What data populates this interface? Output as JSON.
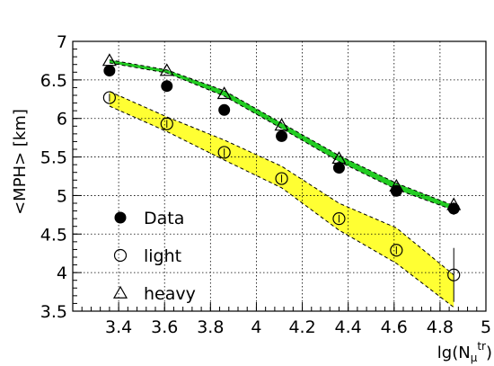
{
  "chart_data": {
    "type": "scatter",
    "title": "",
    "xlabel": {
      "main": "lg(N",
      "sub": "μ",
      "sup": "tr",
      "close": ")"
    },
    "ylabel": "<MPH> [km]",
    "xlim": [
      3.2,
      5.0
    ],
    "ylim": [
      3.5,
      7.0
    ],
    "xticks": [
      3.4,
      3.6,
      3.8,
      4.0,
      4.2,
      4.4,
      4.6,
      4.8,
      5.0
    ],
    "xtick_labels": [
      "3.4",
      "3.6",
      "3.8",
      "4",
      "4.2",
      "4.4",
      "4.6",
      "4.8",
      "5"
    ],
    "yticks": [
      3.5,
      4.0,
      4.5,
      5.0,
      5.5,
      6.0,
      6.5,
      7.0
    ],
    "ytick_labels": [
      "3.5",
      "4",
      "4.5",
      "5",
      "5.5",
      "6",
      "6.5",
      "7"
    ],
    "grid": true,
    "legend_position": "bottom-left",
    "series": [
      {
        "name": "Data",
        "marker": "filled-circle",
        "x": [
          3.36,
          3.61,
          3.86,
          4.11,
          4.36,
          4.61,
          4.86
        ],
        "y": [
          6.62,
          6.42,
          6.11,
          5.77,
          5.36,
          5.06,
          4.83
        ],
        "err": [
          0.05,
          0.05,
          0.05,
          0.05,
          0.05,
          0.05,
          0.08
        ]
      },
      {
        "name": "light",
        "marker": "open-circle",
        "x": [
          3.36,
          3.61,
          3.86,
          4.11,
          4.36,
          4.61,
          4.86
        ],
        "y": [
          6.27,
          5.93,
          5.56,
          5.22,
          4.7,
          4.29,
          3.97
        ],
        "err": [
          0.05,
          0.05,
          0.05,
          0.05,
          0.05,
          0.05,
          0.35
        ]
      },
      {
        "name": "heavy",
        "marker": "open-triangle",
        "x": [
          3.36,
          3.61,
          3.86,
          4.11,
          4.36,
          4.61,
          4.86
        ],
        "y": [
          6.75,
          6.62,
          6.32,
          5.91,
          5.48,
          5.12,
          4.88
        ]
      }
    ],
    "bands": [
      {
        "color": "#ffff33",
        "x": [
          3.36,
          3.61,
          3.86,
          4.11,
          4.36,
          4.61,
          4.86
        ],
        "upper": [
          6.35,
          6.02,
          5.72,
          5.38,
          4.9,
          4.58,
          3.97
        ],
        "lower": [
          6.16,
          5.83,
          5.46,
          5.1,
          4.55,
          4.12,
          3.55
        ]
      },
      {
        "color": "#22cc22",
        "x": [
          3.36,
          3.61,
          3.86,
          4.11,
          4.36,
          4.61,
          4.86
        ],
        "upper": [
          6.76,
          6.63,
          6.36,
          5.94,
          5.52,
          5.16,
          4.87
        ],
        "lower": [
          6.72,
          6.59,
          6.29,
          5.87,
          5.44,
          5.08,
          4.81
        ]
      }
    ]
  }
}
